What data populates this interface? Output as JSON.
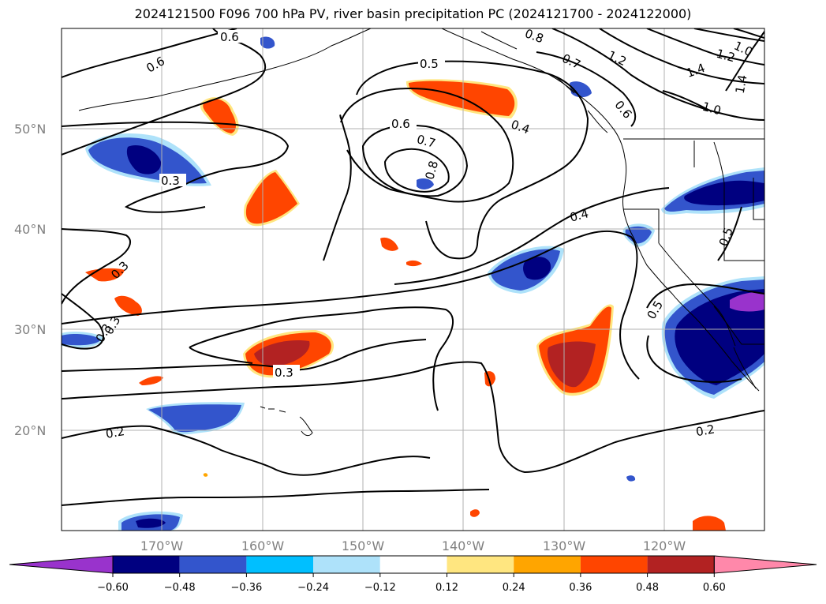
{
  "title": "2024121500 F096 700 hPa PV, river basin precipitation PC (2024121700 - 2024122000)",
  "map": {
    "lat_labels": [
      "50°N",
      "40°N",
      "30°N",
      "20°N"
    ],
    "lon_labels": [
      "170°W",
      "160°W",
      "150°W",
      "140°W",
      "130°W",
      "120°W"
    ]
  },
  "contour_labels": [
    "0.6",
    "0.6",
    "0.5",
    "0.6",
    "0.7",
    "0.8",
    "0.4",
    "0.8",
    "0.7",
    "1.2",
    "1.0",
    "1.2",
    "1.4",
    "1.4",
    "1.0",
    "0.6",
    "0.3",
    "0.4",
    "0.5",
    "0.3",
    "0.3",
    "0.3",
    "0.5",
    "0.3",
    "0.2",
    "0.2"
  ],
  "colorbar": {
    "ticks": [
      "−0.60",
      "−0.48",
      "−0.36",
      "−0.24",
      "−0.12",
      "0.12",
      "0.24",
      "0.36",
      "0.48",
      "0.60"
    ],
    "colors": [
      "#9933cc",
      "#000080",
      "#3355cc",
      "#00bfff",
      "#aee2fa",
      "#ffffff",
      "#ffe680",
      "#ffa500",
      "#ff4500",
      "#b22222",
      "#ff88aa"
    ]
  }
}
